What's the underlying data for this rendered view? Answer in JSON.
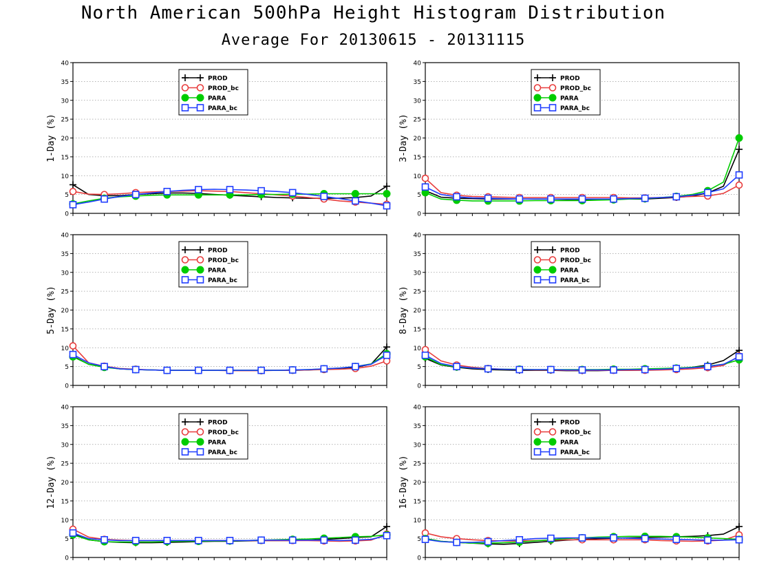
{
  "page": {
    "title": "North American 500hPa Height Histogram Distribution",
    "subtitle": "Average For 20130615 - 20131115"
  },
  "colors": {
    "PROD": "#000000",
    "PROD_bc": "#e83c3c",
    "PARA": "#00cc00",
    "PARA_bc": "#1e3cff"
  },
  "legend_markers": {
    "PROD": "plus",
    "PROD_bc": "open-circle",
    "PARA": "filled-circle",
    "PARA_bc": "open-square"
  },
  "chart_data": [
    {
      "type": "line",
      "ylabel": "1-Day (%)",
      "ylim": [
        0,
        40
      ],
      "yticks": [
        0,
        5,
        10,
        15,
        20,
        25,
        30,
        35,
        40
      ],
      "grid": true,
      "legend": "top-left",
      "series": [
        {
          "name": "PROD",
          "values": [
            7.6,
            5.0,
            4.7,
            4.7,
            5.0,
            5.2,
            5.4,
            5.4,
            5.3,
            5.0,
            4.8,
            4.6,
            4.4,
            4.2,
            4.1,
            4.0,
            4.0,
            4.0,
            4.2,
            4.6,
            7.2
          ]
        },
        {
          "name": "PROD_bc",
          "values": [
            5.8,
            5.1,
            5.0,
            5.2,
            5.5,
            5.7,
            5.8,
            5.9,
            6.0,
            5.9,
            5.8,
            5.5,
            5.2,
            4.9,
            4.6,
            4.2,
            3.8,
            3.3,
            3.0,
            2.7,
            2.4
          ]
        },
        {
          "name": "PARA",
          "values": [
            2.5,
            3.3,
            4.0,
            4.4,
            4.6,
            4.8,
            4.9,
            4.9,
            4.9,
            4.9,
            4.9,
            4.9,
            5.0,
            5.0,
            5.1,
            5.1,
            5.2,
            5.2,
            5.2,
            5.2,
            5.2
          ]
        },
        {
          "name": "PARA_bc",
          "values": [
            2.3,
            3.0,
            3.8,
            4.5,
            5.0,
            5.4,
            5.8,
            6.1,
            6.3,
            6.4,
            6.3,
            6.2,
            6.0,
            5.8,
            5.5,
            5.0,
            4.5,
            3.9,
            3.3,
            2.7,
            2.0
          ]
        }
      ]
    },
    {
      "type": "line",
      "ylabel": "3-Day (%)",
      "ylim": [
        0,
        40
      ],
      "yticks": [
        0,
        5,
        10,
        15,
        20,
        25,
        30,
        35,
        40
      ],
      "grid": true,
      "legend": "top-left",
      "series": [
        {
          "name": "PROD",
          "values": [
            6.0,
            4.3,
            4.0,
            3.9,
            3.8,
            3.8,
            3.8,
            3.8,
            3.8,
            3.7,
            3.7,
            3.7,
            3.8,
            3.8,
            3.8,
            4.0,
            4.2,
            4.6,
            5.4,
            7.2,
            17.0
          ]
        },
        {
          "name": "PROD_bc",
          "values": [
            9.3,
            5.5,
            4.8,
            4.5,
            4.4,
            4.3,
            4.2,
            4.2,
            4.2,
            4.2,
            4.2,
            4.2,
            4.2,
            4.1,
            4.1,
            4.2,
            4.3,
            4.5,
            4.6,
            5.3,
            7.5
          ]
        },
        {
          "name": "PARA",
          "values": [
            5.5,
            3.8,
            3.5,
            3.3,
            3.3,
            3.3,
            3.3,
            3.4,
            3.4,
            3.4,
            3.4,
            3.5,
            3.6,
            3.8,
            3.9,
            4.2,
            4.5,
            5.0,
            6.0,
            8.3,
            20.0
          ]
        },
        {
          "name": "PARA_bc",
          "values": [
            7.0,
            5.0,
            4.4,
            4.1,
            4.0,
            3.9,
            3.8,
            3.8,
            3.8,
            3.8,
            3.8,
            3.8,
            3.8,
            3.9,
            4.0,
            4.2,
            4.4,
            4.8,
            5.5,
            6.5,
            10.2
          ]
        }
      ]
    },
    {
      "type": "line",
      "ylabel": "5-Day (%)",
      "ylim": [
        0,
        40
      ],
      "yticks": [
        0,
        5,
        10,
        15,
        20,
        25,
        30,
        35,
        40
      ],
      "grid": true,
      "legend": "top-left",
      "series": [
        {
          "name": "PROD",
          "values": [
            7.8,
            5.6,
            4.9,
            4.4,
            4.2,
            4.1,
            4.0,
            4.0,
            4.0,
            4.0,
            4.0,
            4.0,
            4.0,
            4.0,
            4.0,
            4.1,
            4.3,
            4.5,
            4.8,
            5.6,
            10.2
          ]
        },
        {
          "name": "PROD_bc",
          "values": [
            10.5,
            6.0,
            5.1,
            4.5,
            4.3,
            4.1,
            4.0,
            4.0,
            4.0,
            4.0,
            3.9,
            3.9,
            3.9,
            4.0,
            4.0,
            4.1,
            4.2,
            4.3,
            4.5,
            5.1,
            6.5
          ]
        },
        {
          "name": "PARA",
          "values": [
            7.6,
            5.6,
            4.8,
            4.4,
            4.2,
            4.1,
            4.0,
            4.0,
            4.0,
            4.0,
            4.0,
            4.0,
            4.0,
            4.0,
            4.1,
            4.2,
            4.4,
            4.6,
            5.0,
            5.7,
            8.4
          ]
        },
        {
          "name": "PARA_bc",
          "values": [
            8.2,
            6.0,
            5.0,
            4.4,
            4.2,
            4.1,
            4.0,
            4.0,
            4.0,
            4.0,
            4.0,
            4.0,
            4.0,
            4.0,
            4.1,
            4.2,
            4.4,
            4.6,
            5.0,
            5.6,
            8.0
          ]
        }
      ]
    },
    {
      "type": "line",
      "ylabel": "8-Day (%)",
      "ylim": [
        0,
        40
      ],
      "yticks": [
        0,
        5,
        10,
        15,
        20,
        25,
        30,
        35,
        40
      ],
      "grid": true,
      "legend": "top-left",
      "series": [
        {
          "name": "PROD",
          "values": [
            7.2,
            5.4,
            4.8,
            4.4,
            4.2,
            4.1,
            4.0,
            4.0,
            4.0,
            3.9,
            3.9,
            3.9,
            4.0,
            4.0,
            4.1,
            4.2,
            4.4,
            4.8,
            5.4,
            6.6,
            9.3
          ]
        },
        {
          "name": "PROD_bc",
          "values": [
            9.5,
            6.5,
            5.4,
            4.8,
            4.5,
            4.3,
            4.2,
            4.1,
            4.1,
            4.0,
            4.0,
            4.0,
            4.0,
            4.0,
            4.0,
            4.1,
            4.2,
            4.4,
            4.7,
            5.3,
            7.8
          ]
        },
        {
          "name": "PARA",
          "values": [
            7.6,
            5.5,
            4.9,
            4.6,
            4.4,
            4.3,
            4.3,
            4.2,
            4.2,
            4.2,
            4.2,
            4.2,
            4.3,
            4.3,
            4.4,
            4.5,
            4.6,
            4.8,
            5.1,
            5.6,
            6.8
          ]
        },
        {
          "name": "PARA_bc",
          "values": [
            8.0,
            5.8,
            5.0,
            4.6,
            4.4,
            4.3,
            4.2,
            4.2,
            4.2,
            4.1,
            4.1,
            4.1,
            4.1,
            4.2,
            4.2,
            4.3,
            4.5,
            4.7,
            5.0,
            5.6,
            7.6
          ]
        }
      ]
    },
    {
      "type": "line",
      "ylabel": "12-Day (%)",
      "ylim": [
        0,
        40
      ],
      "yticks": [
        0,
        5,
        10,
        15,
        20,
        25,
        30,
        35,
        40
      ],
      "grid": true,
      "legend": "top-left",
      "series": [
        {
          "name": "PROD",
          "values": [
            6.2,
            4.7,
            4.2,
            4.0,
            3.9,
            3.9,
            4.0,
            4.1,
            4.2,
            4.3,
            4.3,
            4.4,
            4.5,
            4.5,
            4.5,
            4.6,
            4.8,
            5.0,
            5.3,
            5.5,
            8.2
          ]
        },
        {
          "name": "PROD_bc",
          "values": [
            7.5,
            5.4,
            4.8,
            4.6,
            4.5,
            4.5,
            4.5,
            4.5,
            4.5,
            4.5,
            4.5,
            4.5,
            4.5,
            4.5,
            4.5,
            4.5,
            4.4,
            4.3,
            4.4,
            4.6,
            6.2
          ]
        },
        {
          "name": "PARA",
          "values": [
            6.0,
            4.7,
            4.2,
            4.1,
            4.1,
            4.1,
            4.2,
            4.3,
            4.3,
            4.4,
            4.4,
            4.5,
            4.6,
            4.7,
            4.8,
            4.9,
            5.1,
            5.3,
            5.5,
            5.6,
            6.0
          ]
        },
        {
          "name": "PARA_bc",
          "values": [
            6.5,
            5.0,
            4.7,
            4.5,
            4.5,
            4.5,
            4.5,
            4.5,
            4.5,
            4.5,
            4.5,
            4.5,
            4.6,
            4.6,
            4.6,
            4.6,
            4.6,
            4.5,
            4.6,
            4.8,
            5.8
          ]
        }
      ]
    },
    {
      "type": "line",
      "ylabel": "16-Day (%)",
      "ylim": [
        0,
        40
      ],
      "yticks": [
        0,
        5,
        10,
        15,
        20,
        25,
        30,
        35,
        40
      ],
      "grid": true,
      "legend": "top-left",
      "series": [
        {
          "name": "PROD",
          "values": [
            5.0,
            4.3,
            4.0,
            3.8,
            3.6,
            3.5,
            3.7,
            4.0,
            4.3,
            4.6,
            4.8,
            5.0,
            5.1,
            5.2,
            5.3,
            5.4,
            5.5,
            5.6,
            5.8,
            6.2,
            8.2
          ]
        },
        {
          "name": "PROD_bc",
          "values": [
            6.5,
            5.5,
            5.0,
            4.7,
            4.5,
            4.4,
            4.4,
            4.5,
            4.6,
            4.7,
            4.7,
            4.7,
            4.7,
            4.7,
            4.7,
            4.5,
            4.4,
            4.3,
            4.4,
            4.6,
            6.0
          ]
        },
        {
          "name": "PARA",
          "values": [
            5.0,
            4.3,
            4.0,
            3.8,
            3.8,
            3.9,
            4.1,
            4.4,
            4.7,
            5.0,
            5.2,
            5.4,
            5.5,
            5.6,
            5.6,
            5.6,
            5.5,
            5.4,
            5.2,
            5.0,
            4.8
          ]
        },
        {
          "name": "PARA_bc",
          "values": [
            4.8,
            4.2,
            4.0,
            4.0,
            4.2,
            4.5,
            4.7,
            5.0,
            5.1,
            5.2,
            5.2,
            5.2,
            5.2,
            5.1,
            5.0,
            4.9,
            4.8,
            4.7,
            4.6,
            4.6,
            4.7
          ]
        }
      ]
    }
  ]
}
